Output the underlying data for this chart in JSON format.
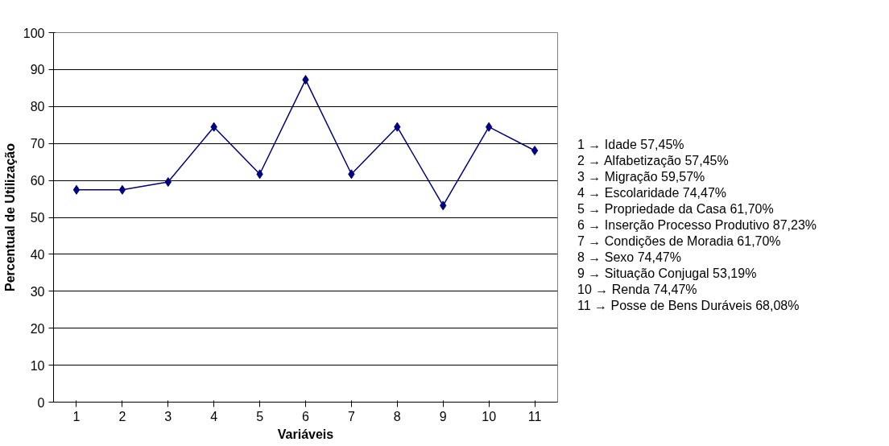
{
  "chart_data": {
    "type": "line",
    "xlabel": "Variáveis",
    "ylabel": "Percentual de Utilização",
    "categories": [
      "1",
      "2",
      "3",
      "4",
      "5",
      "6",
      "7",
      "8",
      "9",
      "10",
      "11"
    ],
    "series": [
      {
        "color": "#000080",
        "values": [
          57.45,
          57.45,
          59.57,
          74.47,
          61.7,
          87.23,
          61.7,
          74.47,
          53.19,
          74.47,
          68.08
        ]
      }
    ],
    "ylim": [
      0,
      100
    ],
    "yticks": [
      0,
      10,
      20,
      30,
      40,
      50,
      60,
      70,
      80,
      90,
      100
    ],
    "grid": "y",
    "marker": "diamond",
    "line_style": "solid",
    "annotations": [
      "1 → Idade 57,45%",
      "2 → Alfabetização 57,45%",
      "3 → Migração 59,57%",
      "4 → Escolaridade 74,47%",
      "5 → Propriedade da Casa 61,70%",
      "6 → Inserção Processo Produtivo 87,23%",
      "7 → Condições de Moradia 61,70%",
      "8 → Sexo 74,47%",
      "9 → Situação Conjugal 53,19%",
      "10 → Renda 74,47%",
      "11 → Posse de Bens Duráveis 68,08%"
    ]
  }
}
